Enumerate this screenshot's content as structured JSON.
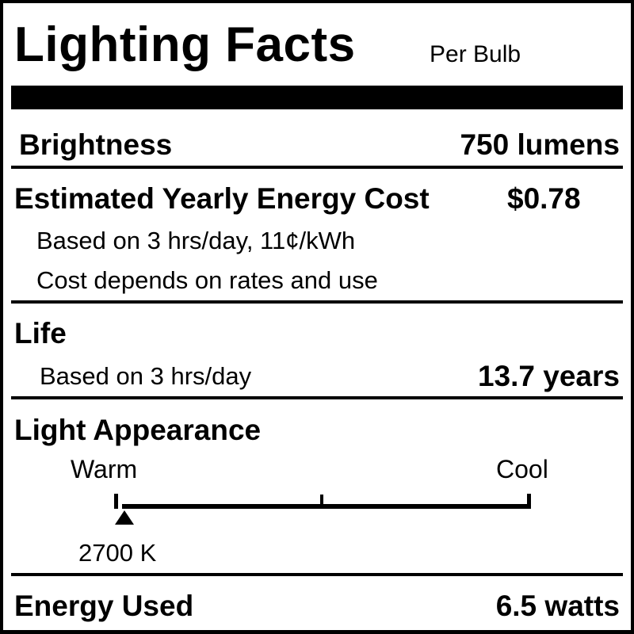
{
  "header": {
    "title": "Lighting Facts",
    "subtitle": "Per Bulb"
  },
  "brightness": {
    "label": "Brightness",
    "value": "750 lumens"
  },
  "energy_cost": {
    "label": "Estimated Yearly Energy Cost",
    "value": "$0.78",
    "note1": "Based on 3 hrs/day, 11¢/kWh",
    "note2": "Cost depends on rates and use"
  },
  "life": {
    "label": "Life",
    "note": "Based on 3 hrs/day",
    "value": "13.7 years"
  },
  "light_appearance": {
    "label": "Light Appearance",
    "warm_label": "Warm",
    "cool_label": "Cool",
    "value": "2700 K",
    "scale_min_k": 2700,
    "scale_max_k": 6500,
    "marker_position_fraction": 0.0
  },
  "energy_used": {
    "label": "Energy Used",
    "value": "6.5 watts"
  }
}
